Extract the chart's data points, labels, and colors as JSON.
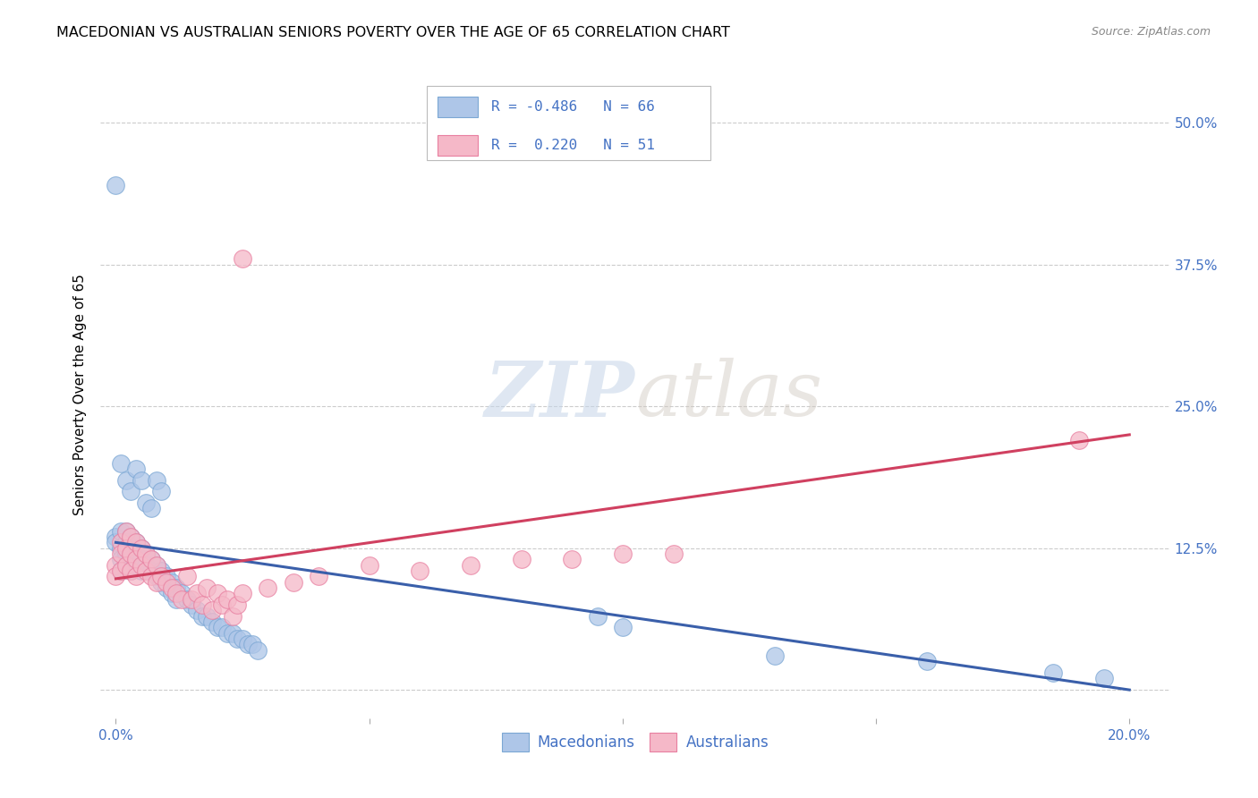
{
  "title": "MACEDONIAN VS AUSTRALIAN SENIORS POVERTY OVER THE AGE OF 65 CORRELATION CHART",
  "source": "Source: ZipAtlas.com",
  "ylabel": "Seniors Poverty Over the Age of 65",
  "ylabel_ticks": [
    "",
    "12.5%",
    "25.0%",
    "37.5%",
    "50.0%"
  ],
  "ylabel_tick_vals": [
    0.0,
    0.125,
    0.25,
    0.375,
    0.5
  ],
  "xlabel_ticks": [
    "0.0%",
    "",
    "",
    "",
    "20.0%"
  ],
  "xlabel_tick_vals": [
    0.0,
    0.05,
    0.1,
    0.15,
    0.2
  ],
  "xmin": -0.003,
  "xmax": 0.208,
  "ymin": -0.025,
  "ymax": 0.545,
  "macedonian_color": "#aec6e8",
  "macedonian_edge": "#7ba7d4",
  "australian_color": "#f5b8c8",
  "australian_edge": "#e87fa0",
  "macedonian_line_color": "#3a5faa",
  "australian_line_color": "#d04060",
  "legend_macedonian_label": "Macedonians",
  "legend_australian_label": "Australians",
  "watermark_zip": "ZIP",
  "watermark_atlas": "atlas",
  "background_color": "#ffffff",
  "grid_color": "#cccccc",
  "title_fontsize": 11.5,
  "source_fontsize": 9,
  "axis_label_color": "#4472c4",
  "mac_x": [
    0.0,
    0.0,
    0.001,
    0.001,
    0.001,
    0.001,
    0.002,
    0.002,
    0.002,
    0.002,
    0.003,
    0.003,
    0.003,
    0.003,
    0.004,
    0.004,
    0.004,
    0.005,
    0.005,
    0.005,
    0.006,
    0.006,
    0.007,
    0.007,
    0.008,
    0.008,
    0.009,
    0.009,
    0.01,
    0.01,
    0.011,
    0.011,
    0.012,
    0.012,
    0.013,
    0.014,
    0.015,
    0.016,
    0.017,
    0.018,
    0.019,
    0.02,
    0.021,
    0.022,
    0.023,
    0.024,
    0.025,
    0.026,
    0.027,
    0.028,
    0.0,
    0.001,
    0.002,
    0.003,
    0.004,
    0.005,
    0.006,
    0.007,
    0.008,
    0.009,
    0.095,
    0.1,
    0.13,
    0.16,
    0.185,
    0.195
  ],
  "mac_y": [
    0.135,
    0.13,
    0.14,
    0.125,
    0.115,
    0.105,
    0.14,
    0.13,
    0.12,
    0.11,
    0.135,
    0.125,
    0.115,
    0.105,
    0.13,
    0.12,
    0.11,
    0.125,
    0.115,
    0.105,
    0.12,
    0.11,
    0.115,
    0.105,
    0.11,
    0.1,
    0.105,
    0.095,
    0.1,
    0.09,
    0.095,
    0.085,
    0.09,
    0.08,
    0.085,
    0.08,
    0.075,
    0.07,
    0.065,
    0.065,
    0.06,
    0.055,
    0.055,
    0.05,
    0.05,
    0.045,
    0.045,
    0.04,
    0.04,
    0.035,
    0.445,
    0.2,
    0.185,
    0.175,
    0.195,
    0.185,
    0.165,
    0.16,
    0.185,
    0.175,
    0.065,
    0.055,
    0.03,
    0.025,
    0.015,
    0.01
  ],
  "aus_x": [
    0.0,
    0.0,
    0.001,
    0.001,
    0.001,
    0.002,
    0.002,
    0.002,
    0.003,
    0.003,
    0.003,
    0.004,
    0.004,
    0.004,
    0.005,
    0.005,
    0.006,
    0.006,
    0.007,
    0.007,
    0.008,
    0.008,
    0.009,
    0.01,
    0.011,
    0.012,
    0.013,
    0.014,
    0.015,
    0.016,
    0.017,
    0.018,
    0.019,
    0.02,
    0.021,
    0.022,
    0.023,
    0.024,
    0.025,
    0.03,
    0.035,
    0.04,
    0.05,
    0.06,
    0.07,
    0.08,
    0.09,
    0.1,
    0.11,
    0.19,
    0.025
  ],
  "aus_y": [
    0.11,
    0.1,
    0.13,
    0.12,
    0.105,
    0.14,
    0.125,
    0.11,
    0.135,
    0.12,
    0.105,
    0.13,
    0.115,
    0.1,
    0.125,
    0.11,
    0.12,
    0.105,
    0.115,
    0.1,
    0.11,
    0.095,
    0.1,
    0.095,
    0.09,
    0.085,
    0.08,
    0.1,
    0.08,
    0.085,
    0.075,
    0.09,
    0.07,
    0.085,
    0.075,
    0.08,
    0.065,
    0.075,
    0.085,
    0.09,
    0.095,
    0.1,
    0.11,
    0.105,
    0.11,
    0.115,
    0.115,
    0.12,
    0.12,
    0.22,
    0.38
  ],
  "mac_line_x": [
    0.0,
    0.2
  ],
  "mac_line_y": [
    0.13,
    0.0
  ],
  "aus_line_x": [
    0.0,
    0.2
  ],
  "aus_line_y": [
    0.098,
    0.225
  ]
}
